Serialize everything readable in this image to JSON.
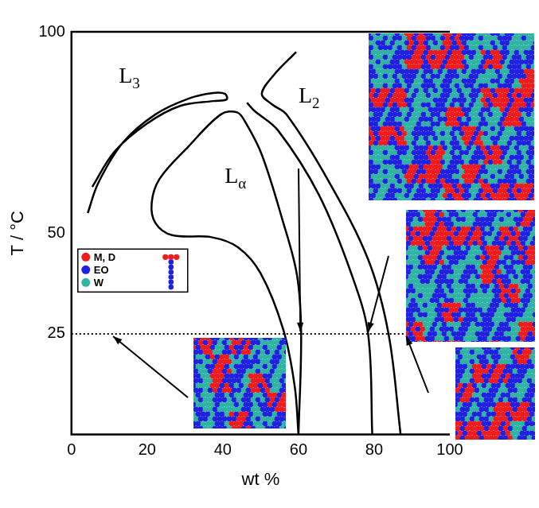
{
  "chart_data": {
    "type": "line",
    "x_label": "wt %",
    "y_label": "T / °C",
    "xlim": [
      0,
      100
    ],
    "xticks": [
      0,
      20,
      40,
      60,
      80,
      100
    ],
    "ylim": [
      0,
      100
    ],
    "yticks": [
      25,
      50,
      100
    ],
    "grid": false,
    "tick_labels": true,
    "series": [
      {
        "color": "#000000",
        "line_style": "solid",
        "x": [
          4.3,
          7.1,
          13.6,
          22.2,
          30.9,
          37.4,
          40.6,
          41.0,
          37.4,
          28.7,
          20.1,
          11.4,
          5.5
        ],
        "values": [
          55.0,
          62.5,
          72.5,
          79.5,
          83.4,
          84.8,
          84.6,
          83.2,
          82.8,
          81.6,
          77.3,
          70.3,
          61.5
        ]
      },
      {
        "color": "#000000",
        "line_style": "solid",
        "x": [
          60.0,
          60.7,
          59.6,
          55.7,
          50.3,
          46.0,
          43.8,
          39.5,
          30.9,
          23.3,
          21.2,
          22.2,
          26.6,
          37.0,
          44.0,
          50.0,
          56.0,
          59.0,
          60.0
        ],
        "values": [
          0.0,
          25.0,
          39.6,
          53.5,
          69.5,
          77.5,
          80.0,
          79.5,
          71.5,
          63.5,
          57.5,
          52.5,
          49.5,
          49.0,
          46.5,
          40.0,
          26.0,
          12.0,
          0.0
        ]
      },
      {
        "color": "#000000",
        "line_style": "solid",
        "x": [
          46.4,
          48.2,
          54.6,
          65.4,
          74.1,
          78.4,
          79.5
        ],
        "values": [
          82.4,
          80.5,
          75.5,
          59.5,
          39.6,
          25.0,
          0.0
        ]
      },
      {
        "color": "#000000",
        "line_style": "solid",
        "x": [
          59.4,
          53.6,
          50.3,
          53.0,
          56.8,
          67.6,
          78.4,
          83.8,
          87.0
        ],
        "values": [
          95.0,
          89.4,
          84.6,
          82.0,
          79.5,
          63.5,
          43.5,
          25.0,
          0.0
        ]
      },
      {
        "color": "#000000",
        "line_style": "dotted",
        "x": [
          0,
          88
        ],
        "values": [
          25,
          25
        ]
      }
    ],
    "region_labels": [
      {
        "text": "L",
        "subscript": "3",
        "x": 12.5,
        "y": 87.4
      },
      {
        "text": "L",
        "subscript": "2",
        "x": 60.0,
        "y": 82.4
      },
      {
        "text": "L",
        "subscript": "α",
        "x": 40.5,
        "y": 62.5
      }
    ],
    "species": [
      {
        "name": "M, D",
        "color": "#ee1c1c"
      },
      {
        "name": "EO",
        "color": "#2020e0"
      },
      {
        "name": "W",
        "color": "#2fb3a3"
      }
    ]
  }
}
